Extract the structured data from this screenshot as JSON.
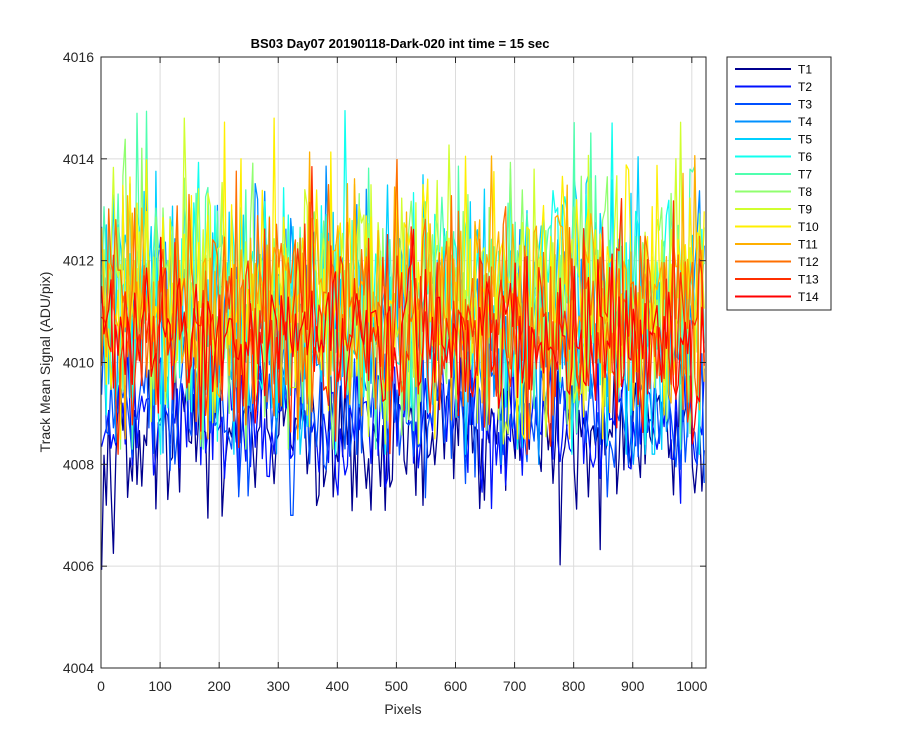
{
  "chart_data": {
    "type": "line",
    "title": "BS03 Day07 20190118-Dark-020 int time = 15 sec",
    "xlabel": "Pixels",
    "ylabel": "Track Mean Signal (ADU/pix)",
    "xlim": [
      0,
      1024
    ],
    "ylim": [
      4004,
      4016
    ],
    "xticks": [
      0,
      100,
      200,
      300,
      400,
      500,
      600,
      700,
      800,
      900,
      1000
    ],
    "yticks": [
      4004,
      4006,
      4008,
      4010,
      4012,
      4014,
      4016
    ],
    "grid": true,
    "legend_position": "outside-top-right",
    "x_sampling": {
      "start": 1,
      "end": 1024,
      "step": 4
    },
    "series": [
      {
        "name": "T1",
        "color": "#00008F",
        "mean": 4008.6,
        "spread": 0.75,
        "min": 4005.3,
        "max": 4010.2
      },
      {
        "name": "T2",
        "color": "#0010FF",
        "mean": 4008.9,
        "spread": 0.7,
        "min": 4006.5,
        "max": 4010.4
      },
      {
        "name": "T3",
        "color": "#0050FF",
        "mean": 4009.1,
        "spread": 0.7,
        "min": 4007.0,
        "max": 4010.6
      },
      {
        "name": "T4",
        "color": "#0090FF",
        "mean": 4010.8,
        "spread": 1.2,
        "min": 4008.0,
        "max": 4014.9
      },
      {
        "name": "T5",
        "color": "#00D0FF",
        "mean": 4011.0,
        "spread": 1.25,
        "min": 4008.2,
        "max": 4015.6
      },
      {
        "name": "T6",
        "color": "#10FFEF",
        "mean": 4011.1,
        "spread": 1.25,
        "min": 4008.2,
        "max": 4015.5
      },
      {
        "name": "T7",
        "color": "#50FFAF",
        "mean": 4011.2,
        "spread": 1.25,
        "min": 4008.3,
        "max": 4015.0
      },
      {
        "name": "T8",
        "color": "#90FF6F",
        "mean": 4011.2,
        "spread": 1.25,
        "min": 4008.3,
        "max": 4015.0
      },
      {
        "name": "T9",
        "color": "#D0FF2F",
        "mean": 4011.3,
        "spread": 1.2,
        "min": 4008.4,
        "max": 4014.8
      },
      {
        "name": "T10",
        "color": "#FFEF00",
        "mean": 4011.3,
        "spread": 1.2,
        "min": 4008.5,
        "max": 4014.8
      },
      {
        "name": "T11",
        "color": "#FFAF00",
        "mean": 4011.2,
        "spread": 1.15,
        "min": 4008.5,
        "max": 4015.3
      },
      {
        "name": "T12",
        "color": "#FF6F00",
        "mean": 4011.0,
        "spread": 1.1,
        "min": 4008.3,
        "max": 4014.9
      },
      {
        "name": "T13",
        "color": "#FF2F00",
        "mean": 4010.7,
        "spread": 0.95,
        "min": 4008.2,
        "max": 4014.7
      },
      {
        "name": "T14",
        "color": "#FF0000",
        "mean": 4010.4,
        "spread": 0.8,
        "min": 4007.2,
        "max": 4013.0
      }
    ]
  }
}
